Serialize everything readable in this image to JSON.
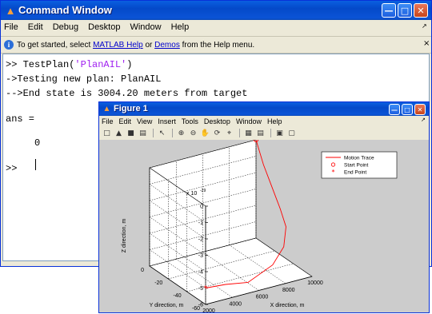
{
  "cmd_window": {
    "title": "Command Window",
    "menu": [
      "File",
      "Edit",
      "Debug",
      "Desktop",
      "Window",
      "Help"
    ],
    "help_bar": {
      "prefix": "To get started, select ",
      "link1": "MATLAB Help",
      "mid": " or ",
      "link2": "Demos",
      "suffix": " from the Help menu."
    },
    "console": {
      "line1_prompt": ">> TestPlan(",
      "line1_string": "'PlanAIL'",
      "line1_end": ")",
      "line2": "->Testing new plan: PlanAIL",
      "line3": "-->End state is 3004.20 meters from target",
      "line4": "ans =",
      "line5": "     0",
      "prompt": ">>"
    }
  },
  "figure": {
    "title": "Figure 1",
    "menu": [
      "File",
      "Edit",
      "View",
      "Insert",
      "Tools",
      "Desktop",
      "Window",
      "Help"
    ],
    "toolbar_icons": [
      "new-file-icon",
      "open-icon",
      "save-icon",
      "print-icon",
      "pointer-icon",
      "zoom-in-icon",
      "zoom-out-icon",
      "pan-icon",
      "rotate-icon",
      "data-cursor-icon",
      "colorbar-icon",
      "legend-icon",
      "hide-plot-tools-icon",
      "show-plot-tools-icon"
    ]
  },
  "chart_data": {
    "type": "line",
    "plot_kind": "3d",
    "title": "",
    "zlabel": "Z direction, m",
    "ylabel": "Y direction, m",
    "xlabel": "X direction, m",
    "z_exponent_label": "x 10",
    "z_exponent_power": "-29",
    "z_ticks": [
      "0",
      "-1",
      "-2",
      "-3",
      "-4",
      "-5",
      "-6"
    ],
    "y_ticks": [
      "0",
      "-20",
      "-40",
      "-60"
    ],
    "x_ticks": [
      "2000",
      "4000",
      "6000",
      "8000",
      "10000"
    ],
    "xlim": [
      2000,
      10000
    ],
    "ylim": [
      -60,
      0
    ],
    "zlim": [
      -6,
      0
    ],
    "grid": true,
    "legend_position": "top-right",
    "legend": [
      "Motion Trace",
      "Start Point",
      "End Point"
    ],
    "colors": {
      "trace": "#ff0000",
      "axes_bg": "#ffffff",
      "figure_bg": "#cccccc"
    },
    "series": [
      {
        "name": "Motion Trace",
        "points": [
          {
            "x": 10000,
            "y": 0,
            "z": 0
          },
          {
            "x": 10000,
            "y": -8,
            "z": -1.2
          },
          {
            "x": 10000,
            "y": -17,
            "z": -2.2
          },
          {
            "x": 10000,
            "y": -26,
            "z": -3.2
          },
          {
            "x": 9800,
            "y": -35,
            "z": -3.9
          },
          {
            "x": 9000,
            "y": -44,
            "z": -4.6
          },
          {
            "x": 7600,
            "y": -52,
            "z": -5.1
          },
          {
            "x": 5400,
            "y": -57,
            "z": -5.5
          },
          {
            "x": 3500,
            "y": -60,
            "z": -5.1
          },
          {
            "x": 2000,
            "y": -60,
            "z": -5.0
          }
        ]
      }
    ],
    "start_point": {
      "x": 10000,
      "y": 0,
      "z": 0
    },
    "end_point": {
      "x": 2000,
      "y": -60,
      "z": -5.0
    }
  }
}
